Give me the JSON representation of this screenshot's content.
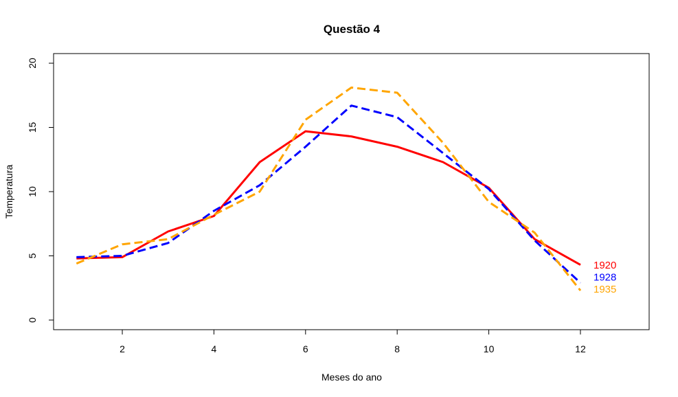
{
  "chart_data": {
    "type": "line",
    "title": "Questão 4",
    "xlabel": "Meses do ano",
    "ylabel": "Temperatura",
    "xlim": [
      0.5,
      13.5
    ],
    "ylim": [
      -0.75,
      20.75
    ],
    "x_ticks": [
      2,
      4,
      6,
      8,
      10,
      12
    ],
    "y_ticks": [
      0,
      5,
      10,
      15,
      20
    ],
    "grid": false,
    "legend": "none; series labels placed at right end of lines",
    "x": [
      1,
      2,
      3,
      4,
      5,
      6,
      7,
      8,
      9,
      10,
      11,
      12
    ],
    "series": [
      {
        "name": "1920",
        "color": "#ff0000",
        "dash": "solid",
        "values": [
          4.8,
          4.9,
          6.9,
          8.1,
          12.3,
          14.7,
          14.3,
          13.5,
          12.3,
          10.3,
          6.3,
          4.3
        ]
      },
      {
        "name": "1928",
        "color": "#0000ff",
        "dash": "dashed",
        "values": [
          4.9,
          5.0,
          6.0,
          8.5,
          10.5,
          13.5,
          16.7,
          15.8,
          13.0,
          10.2,
          6.2,
          2.9
        ]
      },
      {
        "name": "1935",
        "color": "#ffa500",
        "dash": "dashed",
        "values": [
          4.4,
          5.9,
          6.3,
          8.2,
          10.0,
          15.6,
          18.1,
          17.7,
          13.8,
          9.2,
          6.8,
          2.3
        ]
      }
    ]
  }
}
